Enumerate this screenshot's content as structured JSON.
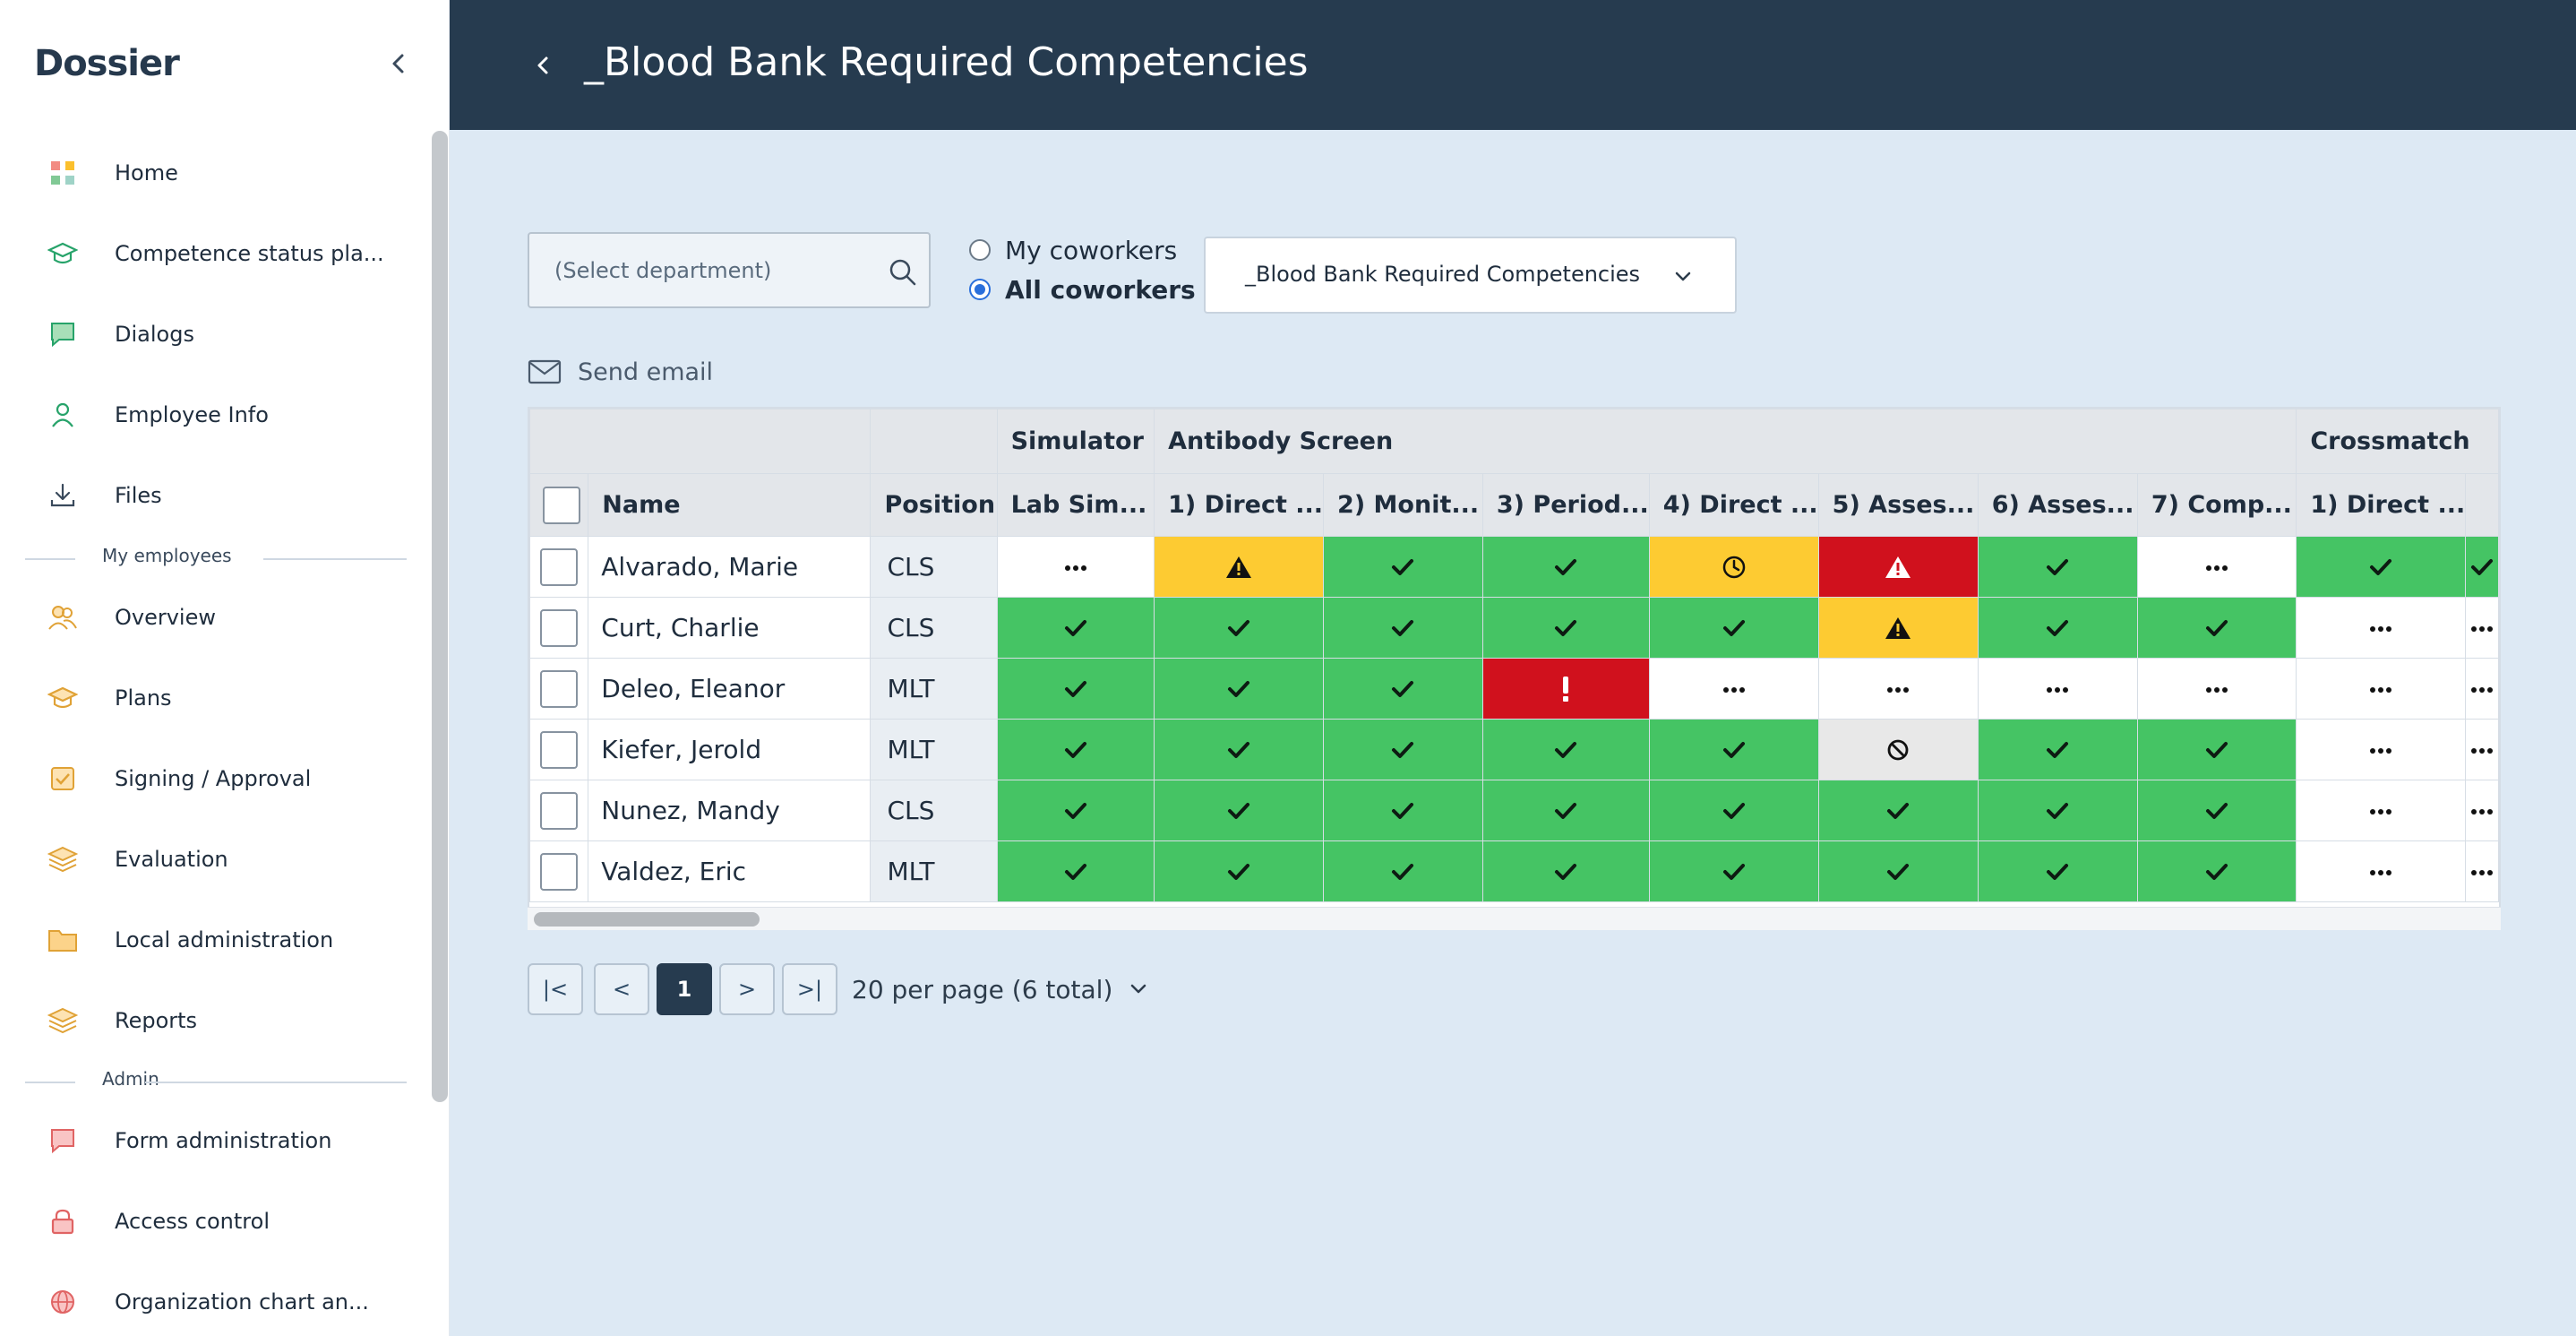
{
  "app": {
    "logo": "Dossier"
  },
  "sidebar": {
    "items": [
      {
        "id": "home",
        "label": "Home",
        "icon": "home-grid-icon"
      },
      {
        "id": "competence",
        "label": "Competence status pla...",
        "icon": "graduation-cap-icon"
      },
      {
        "id": "dialogs",
        "label": "Dialogs",
        "icon": "chat-bubble-icon"
      },
      {
        "id": "employee-info",
        "label": "Employee Info",
        "icon": "person-icon"
      },
      {
        "id": "files",
        "label": "Files",
        "icon": "download-icon"
      }
    ],
    "section_my_employees": "My employees",
    "my_employees_items": [
      {
        "id": "overview",
        "label": "Overview",
        "icon": "people-icon"
      },
      {
        "id": "plans",
        "label": "Plans",
        "icon": "graduation-cap-icon"
      },
      {
        "id": "signing",
        "label": "Signing / Approval",
        "icon": "checkbox-icon"
      },
      {
        "id": "evaluation",
        "label": "Evaluation",
        "icon": "layers-icon"
      },
      {
        "id": "local-admin",
        "label": "Local administration",
        "icon": "folder-icon"
      },
      {
        "id": "reports",
        "label": "Reports",
        "icon": "layers-icon"
      }
    ],
    "section_admin": "Admin",
    "admin_items": [
      {
        "id": "form-admin",
        "label": "Form administration",
        "icon": "chat-bubble-icon"
      },
      {
        "id": "access",
        "label": "Access control",
        "icon": "lock-icon"
      },
      {
        "id": "org-chart",
        "label": "Organization chart an...",
        "icon": "globe-icon"
      }
    ]
  },
  "header": {
    "title": "_Blood Bank Required Competencies"
  },
  "toolbar": {
    "department_placeholder": "(Select department)",
    "radio_my": "My coworkers",
    "radio_all": "All coworkers",
    "selected_radio": "all",
    "competency_select": "_Blood Bank Required Competencies",
    "send_email": "Send email"
  },
  "table": {
    "groups": [
      {
        "label": "",
        "span": 2
      },
      {
        "label": "",
        "span": 1
      },
      {
        "label": "Simulator",
        "span": 1
      },
      {
        "label": "Antibody Screen",
        "span": 7
      },
      {
        "label": "Crossmatch",
        "span": 2
      }
    ],
    "col_name": "Name",
    "col_position": "Position",
    "competency_columns": [
      "Lab Sim...",
      "1) Direct ...",
      "2) Monit...",
      "3) Period...",
      "4) Direct ...",
      "5) Asses...",
      "6) Asses...",
      "7) Comp...",
      "1) Direct ...",
      ""
    ],
    "rows": [
      {
        "name": "Alvarado, Marie",
        "position": "CLS",
        "statuses": [
          "none",
          "warn",
          "ok",
          "ok",
          "time",
          "err-warn",
          "ok",
          "none",
          "ok",
          "ok"
        ]
      },
      {
        "name": "Curt, Charlie",
        "position": "CLS",
        "statuses": [
          "ok",
          "ok",
          "ok",
          "ok",
          "ok",
          "warn",
          "ok",
          "ok",
          "none",
          "none"
        ]
      },
      {
        "name": "Deleo, Eleanor",
        "position": "MLT",
        "statuses": [
          "ok",
          "ok",
          "ok",
          "err",
          "none",
          "none",
          "none",
          "none",
          "none",
          "none"
        ]
      },
      {
        "name": "Kiefer, Jerold",
        "position": "MLT",
        "statuses": [
          "ok",
          "ok",
          "ok",
          "ok",
          "ok",
          "na",
          "ok",
          "ok",
          "none",
          "none"
        ]
      },
      {
        "name": "Nunez, Mandy",
        "position": "CLS",
        "statuses": [
          "ok",
          "ok",
          "ok",
          "ok",
          "ok",
          "ok",
          "ok",
          "ok",
          "none",
          "none"
        ]
      },
      {
        "name": "Valdez, Eric",
        "position": "MLT",
        "statuses": [
          "ok",
          "ok",
          "ok",
          "ok",
          "ok",
          "ok",
          "ok",
          "ok",
          "none",
          "none"
        ]
      }
    ],
    "status_colors": {
      "ok": "#45c464",
      "warn": "#fdcb32",
      "err": "#d0111d",
      "none": "#ffffff",
      "na": "#e8e8e8"
    }
  },
  "pagination": {
    "first": "|<",
    "prev": "<",
    "current": "1",
    "next": ">",
    "last": ">|",
    "per_page": "20 per page (6 total)"
  }
}
